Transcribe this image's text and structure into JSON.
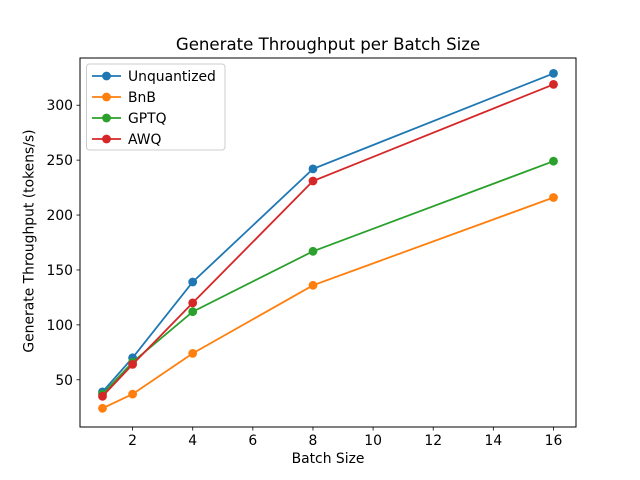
{
  "figure": {
    "background": "#ffffff",
    "text_color": "#000000",
    "spine_color": "#000000"
  },
  "chart_data": {
    "type": "line",
    "title": "Generate Throughput per Batch Size",
    "xlabel": "Batch Size",
    "ylabel": "Generate Throughput (tokens/s)",
    "x": [
      1,
      2,
      4,
      8,
      16
    ],
    "series": [
      {
        "name": "Unquantized",
        "color": "#1f77b4",
        "values": [
          39,
          70,
          139,
          242,
          329
        ]
      },
      {
        "name": "BnB",
        "color": "#ff7f0e",
        "values": [
          24,
          37,
          74,
          136,
          216
        ]
      },
      {
        "name": "GPTQ",
        "color": "#2ca02c",
        "values": [
          37,
          66,
          112,
          167,
          249
        ]
      },
      {
        "name": "AWQ",
        "color": "#d62728",
        "values": [
          35,
          64,
          120,
          231,
          319
        ]
      }
    ],
    "xticks": [
      2,
      4,
      6,
      8,
      10,
      12,
      14,
      16
    ],
    "yticks": [
      50,
      100,
      150,
      200,
      250,
      300
    ],
    "xlim": [
      0.25,
      16.75
    ],
    "ylim": [
      7,
      343
    ],
    "grid": false,
    "marker": "o",
    "legend": {
      "position": "upper-left",
      "frame_color": "#cccccc",
      "entries": [
        "Unquantized",
        "BnB",
        "GPTQ",
        "AWQ"
      ]
    }
  }
}
